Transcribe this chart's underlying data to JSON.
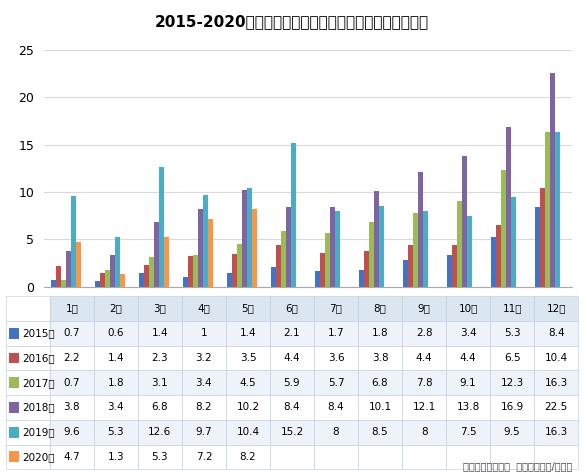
{
  "title": "2015-2020年新能源汽车月度销量趋势图（单位：万辆）",
  "months": [
    "1月",
    "2月",
    "3月",
    "4月",
    "5月",
    "6月",
    "7月",
    "8月",
    "9月",
    "10月",
    "11月",
    "12月"
  ],
  "series": [
    {
      "label": "2015年",
      "color": "#4472C4",
      "values": [
        0.7,
        0.6,
        1.4,
        1.0,
        1.4,
        2.1,
        1.7,
        1.8,
        2.8,
        3.4,
        5.3,
        8.4
      ]
    },
    {
      "label": "2016年",
      "color": "#C0504D",
      "values": [
        2.2,
        1.4,
        2.3,
        3.2,
        3.5,
        4.4,
        3.6,
        3.8,
        4.4,
        4.4,
        6.5,
        10.4
      ]
    },
    {
      "label": "2017年",
      "color": "#9BBB59",
      "values": [
        0.7,
        1.8,
        3.1,
        3.4,
        4.5,
        5.9,
        5.7,
        6.8,
        7.8,
        9.1,
        12.3,
        16.3
      ]
    },
    {
      "label": "2018年",
      "color": "#8064A2",
      "values": [
        3.8,
        3.4,
        6.8,
        8.2,
        10.2,
        8.4,
        8.4,
        10.1,
        12.1,
        13.8,
        16.9,
        22.5
      ]
    },
    {
      "label": "2019年",
      "color": "#4BACC6",
      "values": [
        9.6,
        5.3,
        12.6,
        9.7,
        10.4,
        15.2,
        8.0,
        8.5,
        8.0,
        7.5,
        9.5,
        16.3
      ]
    },
    {
      "label": "2020年",
      "color": "#F79646",
      "values": [
        4.7,
        1.3,
        5.3,
        7.2,
        8.2,
        null,
        null,
        null,
        null,
        null,
        null,
        null
      ]
    }
  ],
  "ylim": [
    0,
    25
  ],
  "yticks": [
    0,
    5,
    10,
    15,
    20,
    25
  ],
  "footer": "数据来源：中汽协  制表：电池网/数据部",
  "background_color": "#FFFFFF",
  "header_row_bg": "#DCE6F1",
  "data_row_bg_even": "#EEF3FA",
  "data_row_bg_odd": "#FFFFFF",
  "grid_color": "#D9D9D9",
  "table_border_color": "#B8CCE4"
}
